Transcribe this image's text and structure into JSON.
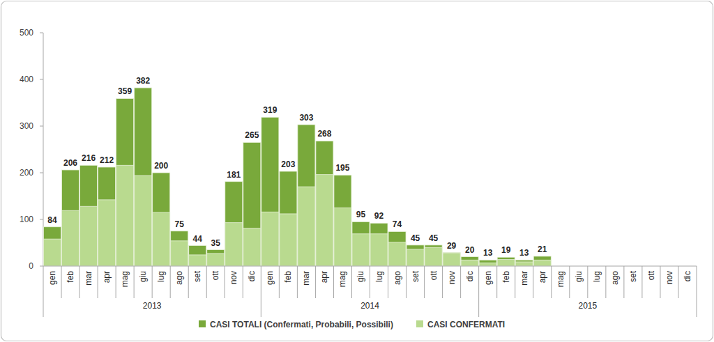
{
  "chart_data": {
    "type": "bar",
    "categories": [
      "gen",
      "feb",
      "mar",
      "apr",
      "mag",
      "giu",
      "lug",
      "ago",
      "set",
      "ott",
      "nov",
      "dic",
      "gen",
      "feb",
      "mar",
      "apr",
      "mag",
      "giu",
      "lug",
      "ago",
      "set",
      "ott",
      "nov",
      "dic",
      "gen",
      "feb",
      "mar",
      "apr",
      "mag",
      "giu",
      "lug",
      "ago",
      "set",
      "ott",
      "nov",
      "dic"
    ],
    "category_groups": [
      "2013",
      "2014",
      "2015"
    ],
    "series": [
      {
        "name": "CASI TOTALI (Confermati, Probabili, Possibili)",
        "color": "#79a93b",
        "data_labels": true,
        "values": [
          84,
          206,
          216,
          212,
          359,
          382,
          200,
          75,
          44,
          35,
          181,
          265,
          319,
          203,
          303,
          268,
          195,
          95,
          92,
          74,
          45,
          45,
          29,
          20,
          13,
          19,
          13,
          21,
          null,
          null,
          null,
          null,
          null,
          null,
          null,
          null
        ]
      },
      {
        "name": "CASI CONFERMATI",
        "color": "#b9da8f",
        "values": [
          58,
          119,
          128,
          142,
          216,
          194,
          115,
          54,
          24,
          27,
          93,
          81,
          116,
          112,
          170,
          196,
          125,
          69,
          69,
          51,
          36,
          40,
          28,
          13,
          7,
          14,
          9,
          13,
          null,
          null,
          null,
          null,
          null,
          null,
          null,
          null
        ]
      }
    ],
    "stacked": false,
    "ylim": [
      0,
      500
    ],
    "yticks": [
      0,
      100,
      200,
      300,
      400,
      500
    ],
    "grid": false,
    "legend": "bottom"
  }
}
